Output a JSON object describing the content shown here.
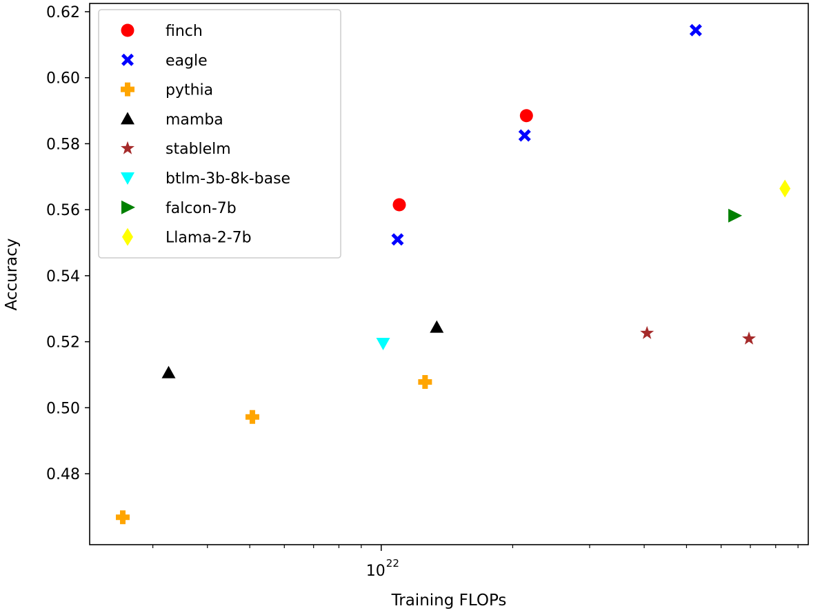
{
  "chart_data": {
    "type": "scatter",
    "title": "",
    "xlabel": "Training FLOPs",
    "ylabel": "Accuracy",
    "xscale": "log",
    "xlim": [
      2.15e+21,
      9.5e+22
    ],
    "ylim": [
      0.4585,
      0.6225
    ],
    "x_major_ticks": [
      {
        "value": 1e+22,
        "label_base": "10",
        "label_exp": "22"
      }
    ],
    "x_minor_ticks": [
      3e+21,
      4e+21,
      5e+21,
      6e+21,
      7e+21,
      8e+21,
      9e+21,
      2e+22,
      3e+22,
      4e+22,
      5e+22,
      6e+22,
      7e+22,
      8e+22,
      9e+22
    ],
    "y_ticks": [
      0.48,
      0.5,
      0.52,
      0.54,
      0.56,
      0.58,
      0.6,
      0.62
    ],
    "y_tick_labels": [
      "0.48",
      "0.50",
      "0.52",
      "0.54",
      "0.56",
      "0.58",
      "0.60",
      "0.62"
    ],
    "grid": false,
    "legend_position": "top-left",
    "series": [
      {
        "name": "finch",
        "marker": "circle",
        "color": "#ff0000",
        "points": [
          [
            1.1e+22,
            0.5615
          ],
          [
            2.15e+22,
            0.5885
          ]
        ]
      },
      {
        "name": "eagle",
        "marker": "x-filled",
        "color": "#0000ff",
        "points": [
          [
            1.09e+22,
            0.551
          ],
          [
            2.13e+22,
            0.5825
          ],
          [
            5.25e+22,
            0.6144
          ]
        ]
      },
      {
        "name": "pythia",
        "marker": "plus-filled",
        "color": "#ffa500",
        "points": [
          [
            2.56e+21,
            0.4668
          ],
          [
            5.07e+21,
            0.4972
          ],
          [
            1.26e+22,
            0.5078
          ]
        ]
      },
      {
        "name": "mamba",
        "marker": "triangle-up",
        "color": "#000000",
        "points": [
          [
            3.26e+21,
            0.5106
          ],
          [
            1.34e+22,
            0.5244
          ]
        ]
      },
      {
        "name": "stablelm",
        "marker": "star",
        "color": "#a52a2a",
        "points": [
          [
            4.06e+22,
            0.5226
          ],
          [
            6.95e+22,
            0.5209
          ]
        ]
      },
      {
        "name": "btlm-3b-8k-base",
        "marker": "triangle-down",
        "color": "#00ffff",
        "points": [
          [
            1.01e+22,
            0.5195
          ]
        ]
      },
      {
        "name": "falcon-7b",
        "marker": "triangle-right",
        "color": "#008000",
        "points": [
          [
            6.44e+22,
            0.5582
          ]
        ]
      },
      {
        "name": "Llama-2-7b",
        "marker": "thin-diamond",
        "color": "#ffff00",
        "points": [
          [
            8.4e+22,
            0.5664
          ]
        ]
      }
    ]
  }
}
